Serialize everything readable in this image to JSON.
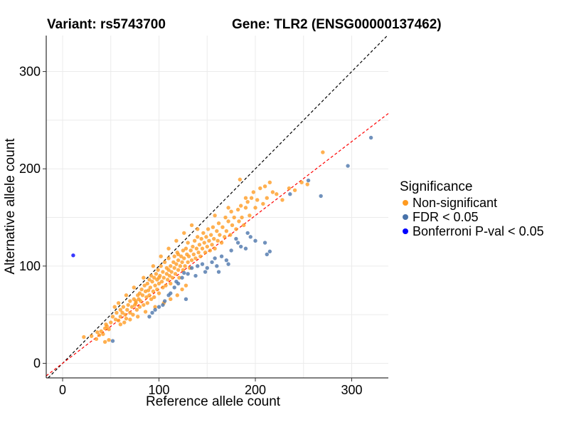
{
  "header": {
    "variant": "Variant: rs5743700",
    "gene": "Gene: TLR2 (ENSG00000137462)"
  },
  "legend": {
    "title": "Significance",
    "items": [
      {
        "label": "Non-significant",
        "color": "#ff9a1f"
      },
      {
        "label": "FDR < 0.05",
        "color": "#4872a9"
      },
      {
        "label": "Bonferroni P-val < 0.05",
        "color": "#0000ff"
      }
    ]
  },
  "chart_data": {
    "type": "scatter",
    "title": "",
    "xlabel": "Reference allele count",
    "ylabel": "Alternative allele count",
    "xlim": [
      -17,
      338
    ],
    "ylim": [
      -15,
      337
    ],
    "xticks": [
      0,
      100,
      200,
      300
    ],
    "yticks": [
      0,
      100,
      200,
      300
    ],
    "grid": true,
    "legend_position": "right",
    "reference_lines": [
      {
        "name": "identity",
        "slope": 1.0,
        "intercept": 0,
        "color": "#000000",
        "dash": true
      },
      {
        "name": "fit",
        "slope": 0.76,
        "intercept": 0,
        "color": "#ff0000",
        "dash": true
      }
    ],
    "series": [
      {
        "name": "Non-significant",
        "color": "#ff9a1f",
        "points": [
          [
            22,
            27
          ],
          [
            30,
            28
          ],
          [
            35,
            25
          ],
          [
            38,
            29
          ],
          [
            40,
            33
          ],
          [
            42,
            30
          ],
          [
            44,
            36
          ],
          [
            45,
            40
          ],
          [
            46,
            38
          ],
          [
            48,
            35
          ],
          [
            50,
            42
          ],
          [
            52,
            48
          ],
          [
            54,
            58
          ],
          [
            55,
            45
          ],
          [
            56,
            52
          ],
          [
            58,
            44
          ],
          [
            60,
            55
          ],
          [
            60,
            48
          ],
          [
            62,
            52
          ],
          [
            63,
            58
          ],
          [
            65,
            50
          ],
          [
            66,
            46
          ],
          [
            67,
            55
          ],
          [
            68,
            60
          ],
          [
            70,
            52
          ],
          [
            70,
            64
          ],
          [
            72,
            58
          ],
          [
            73,
            50
          ],
          [
            74,
            66
          ],
          [
            75,
            60
          ],
          [
            76,
            62
          ],
          [
            77,
            55
          ],
          [
            78,
            70
          ],
          [
            79,
            66
          ],
          [
            80,
            72
          ],
          [
            80,
            58
          ],
          [
            81,
            64
          ],
          [
            82,
            76
          ],
          [
            83,
            70
          ],
          [
            84,
            60
          ],
          [
            85,
            80
          ],
          [
            86,
            74
          ],
          [
            87,
            68
          ],
          [
            88,
            82
          ],
          [
            88,
            62
          ],
          [
            89,
            75
          ],
          [
            90,
            86
          ],
          [
            90,
            70
          ],
          [
            91,
            78
          ],
          [
            92,
            66
          ],
          [
            92,
            90
          ],
          [
            93,
            84
          ],
          [
            94,
            74
          ],
          [
            95,
            88
          ],
          [
            95,
            68
          ],
          [
            96,
            80
          ],
          [
            97,
            92
          ],
          [
            98,
            76
          ],
          [
            98,
            86
          ],
          [
            99,
            96
          ],
          [
            100,
            82
          ],
          [
            100,
            72
          ],
          [
            101,
            90
          ],
          [
            102,
            100
          ],
          [
            103,
            84
          ],
          [
            104,
            78
          ],
          [
            104,
            94
          ],
          [
            105,
            88
          ],
          [
            106,
            104
          ],
          [
            107,
            80
          ],
          [
            108,
            92
          ],
          [
            108,
            98
          ],
          [
            109,
            86
          ],
          [
            110,
            96
          ],
          [
            110,
            108
          ],
          [
            111,
            90
          ],
          [
            112,
            82
          ],
          [
            112,
            100
          ],
          [
            113,
            94
          ],
          [
            114,
            88
          ],
          [
            115,
            104
          ],
          [
            116,
            98
          ],
          [
            116,
            110
          ],
          [
            117,
            92
          ],
          [
            118,
            102
          ],
          [
            119,
            114
          ],
          [
            120,
            96
          ],
          [
            120,
            106
          ],
          [
            121,
            88
          ],
          [
            122,
            100
          ],
          [
            123,
            110
          ],
          [
            124,
            104
          ],
          [
            125,
            96
          ],
          [
            125,
            116
          ],
          [
            126,
            108
          ],
          [
            127,
            100
          ],
          [
            128,
            118
          ],
          [
            129,
            112
          ],
          [
            130,
            104
          ],
          [
            130,
            124
          ],
          [
            131,
            110
          ],
          [
            132,
            98
          ],
          [
            133,
            116
          ],
          [
            134,
            106
          ],
          [
            135,
            120
          ],
          [
            136,
            112
          ],
          [
            137,
            126
          ],
          [
            138,
            108
          ],
          [
            139,
            118
          ],
          [
            140,
            130
          ],
          [
            141,
            114
          ],
          [
            142,
            122
          ],
          [
            143,
            110
          ],
          [
            144,
            128
          ],
          [
            145,
            118
          ],
          [
            146,
            134
          ],
          [
            147,
            124
          ],
          [
            148,
            114
          ],
          [
            149,
            130
          ],
          [
            150,
            120
          ],
          [
            151,
            138
          ],
          [
            152,
            126
          ],
          [
            153,
            116
          ],
          [
            154,
            132
          ],
          [
            155,
            122
          ],
          [
            156,
            140
          ],
          [
            157,
            128
          ],
          [
            158,
            118
          ],
          [
            160,
            136
          ],
          [
            161,
            126
          ],
          [
            162,
            144
          ],
          [
            163,
            132
          ],
          [
            165,
            124
          ],
          [
            166,
            140
          ],
          [
            168,
            130
          ],
          [
            169,
            150
          ],
          [
            170,
            136
          ],
          [
            172,
            146
          ],
          [
            174,
            132
          ],
          [
            175,
            156
          ],
          [
            176,
            142
          ],
          [
            178,
            150
          ],
          [
            180,
            138
          ],
          [
            182,
            158
          ],
          [
            183,
            146
          ],
          [
            185,
            162
          ],
          [
            186,
            150
          ],
          [
            188,
            142
          ],
          [
            190,
            160
          ],
          [
            192,
            166
          ],
          [
            194,
            152
          ],
          [
            196,
            170
          ],
          [
            198,
            176
          ],
          [
            200,
            160
          ],
          [
            202,
            168
          ],
          [
            205,
            180
          ],
          [
            208,
            164
          ],
          [
            210,
            182
          ],
          [
            212,
            170
          ],
          [
            215,
            186
          ],
          [
            218,
            176
          ],
          [
            222,
            174
          ],
          [
            228,
            168
          ],
          [
            235,
            180
          ],
          [
            241,
            178
          ],
          [
            248,
            186
          ],
          [
            254,
            184
          ],
          [
            270,
            217
          ],
          [
            184,
            189
          ],
          [
            190,
            170
          ],
          [
            64,
            42
          ],
          [
            70,
            45
          ],
          [
            78,
            48
          ],
          [
            86,
            53
          ],
          [
            96,
            58
          ],
          [
            105,
            62
          ],
          [
            112,
            66
          ],
          [
            119,
            70
          ],
          [
            124,
            76
          ],
          [
            128,
            80
          ],
          [
            58,
            62
          ],
          [
            66,
            70
          ],
          [
            74,
            78
          ],
          [
            84,
            88
          ],
          [
            94,
            100
          ],
          [
            102,
            110
          ],
          [
            110,
            118
          ],
          [
            118,
            126
          ],
          [
            126,
            134
          ],
          [
            134,
            142
          ],
          [
            48,
            24
          ],
          [
            44,
            22
          ],
          [
            36,
            32
          ],
          [
            60,
            40
          ],
          [
            76,
            64
          ],
          [
            100,
            88
          ],
          [
            120,
            112
          ],
          [
            140,
            138
          ],
          [
            158,
            152
          ],
          [
            172,
            160
          ]
        ]
      },
      {
        "name": "FDR < 0.05",
        "color": "#4872a9",
        "points": [
          [
            52,
            23
          ],
          [
            90,
            48
          ],
          [
            93,
            52
          ],
          [
            96,
            55
          ],
          [
            100,
            58
          ],
          [
            104,
            60
          ],
          [
            106,
            64
          ],
          [
            110,
            70
          ],
          [
            112,
            72
          ],
          [
            116,
            78
          ],
          [
            118,
            84
          ],
          [
            120,
            82
          ],
          [
            124,
            88
          ],
          [
            126,
            93
          ],
          [
            130,
            92
          ],
          [
            134,
            98
          ],
          [
            140,
            100
          ],
          [
            145,
            102
          ],
          [
            150,
            98
          ],
          [
            155,
            104
          ],
          [
            158,
            108
          ],
          [
            160,
            100
          ],
          [
            165,
            110
          ],
          [
            170,
            106
          ],
          [
            175,
            116
          ],
          [
            180,
            128
          ],
          [
            185,
            120
          ],
          [
            190,
            118
          ],
          [
            195,
            130
          ],
          [
            200,
            126
          ],
          [
            210,
            124
          ],
          [
            212,
            112
          ],
          [
            215,
            115
          ],
          [
            236,
            174
          ],
          [
            255,
            188
          ],
          [
            268,
            172
          ],
          [
            296,
            203
          ],
          [
            320,
            232
          ],
          [
            128,
            66
          ],
          [
            138,
            90
          ],
          [
            148,
            94
          ],
          [
            162,
            94
          ],
          [
            172,
            102
          ],
          [
            182,
            124
          ],
          [
            192,
            134
          ]
        ]
      },
      {
        "name": "Bonferroni P-val < 0.05",
        "color": "#0000ff",
        "points": [
          [
            11,
            111
          ]
        ]
      }
    ]
  }
}
